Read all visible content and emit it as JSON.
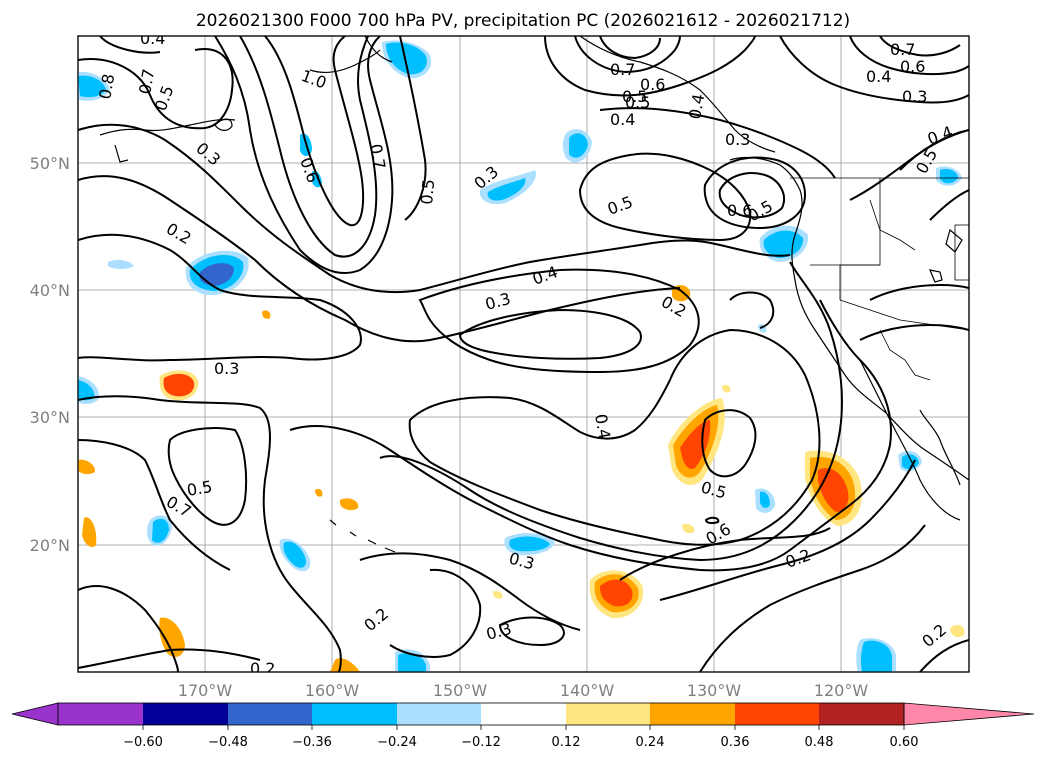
{
  "title": "2026021300 F000 700 hPa PV, precipitation PC (2026021612 - 2026021712)",
  "map": {
    "lat_labels": [
      "50°N",
      "40°N",
      "30°N",
      "20°N"
    ],
    "lon_labels": [
      "170°W",
      "160°W",
      "150°W",
      "140°W",
      "130°W",
      "120°W"
    ],
    "contour_labels": [
      "0.4",
      "0.8",
      "0.7",
      "0.5",
      "1.0",
      "0.6",
      "0.3",
      "0.7",
      "0.5",
      "0.3",
      "0.7",
      "0.5",
      "0.6",
      "0.5",
      "0.4",
      "0.4",
      "0.5",
      "0.3",
      "0.7",
      "0.6",
      "0.4",
      "0.3",
      "0.4",
      "0.5",
      "0.6",
      "0.5",
      "0.2",
      "0.4",
      "0.3",
      "0.2",
      "0.3",
      "0.4",
      "0.5",
      "0.7",
      "0.5",
      "0.6",
      "0.3",
      "0.2",
      "0.2",
      "0.3",
      "0.2",
      "0.2"
    ]
  },
  "colorbar": {
    "ticks": [
      "−0.60",
      "−0.48",
      "−0.36",
      "−0.24",
      "−0.12",
      "0.12",
      "0.24",
      "0.36",
      "0.48",
      "0.60"
    ],
    "colors": [
      "#9933cc",
      "#000099",
      "#3366cc",
      "#00bfff",
      "#aadfff",
      "#ffffff",
      "#ffe680",
      "#ffa500",
      "#ff4500",
      "#b22222",
      "#ff88aa"
    ]
  }
}
